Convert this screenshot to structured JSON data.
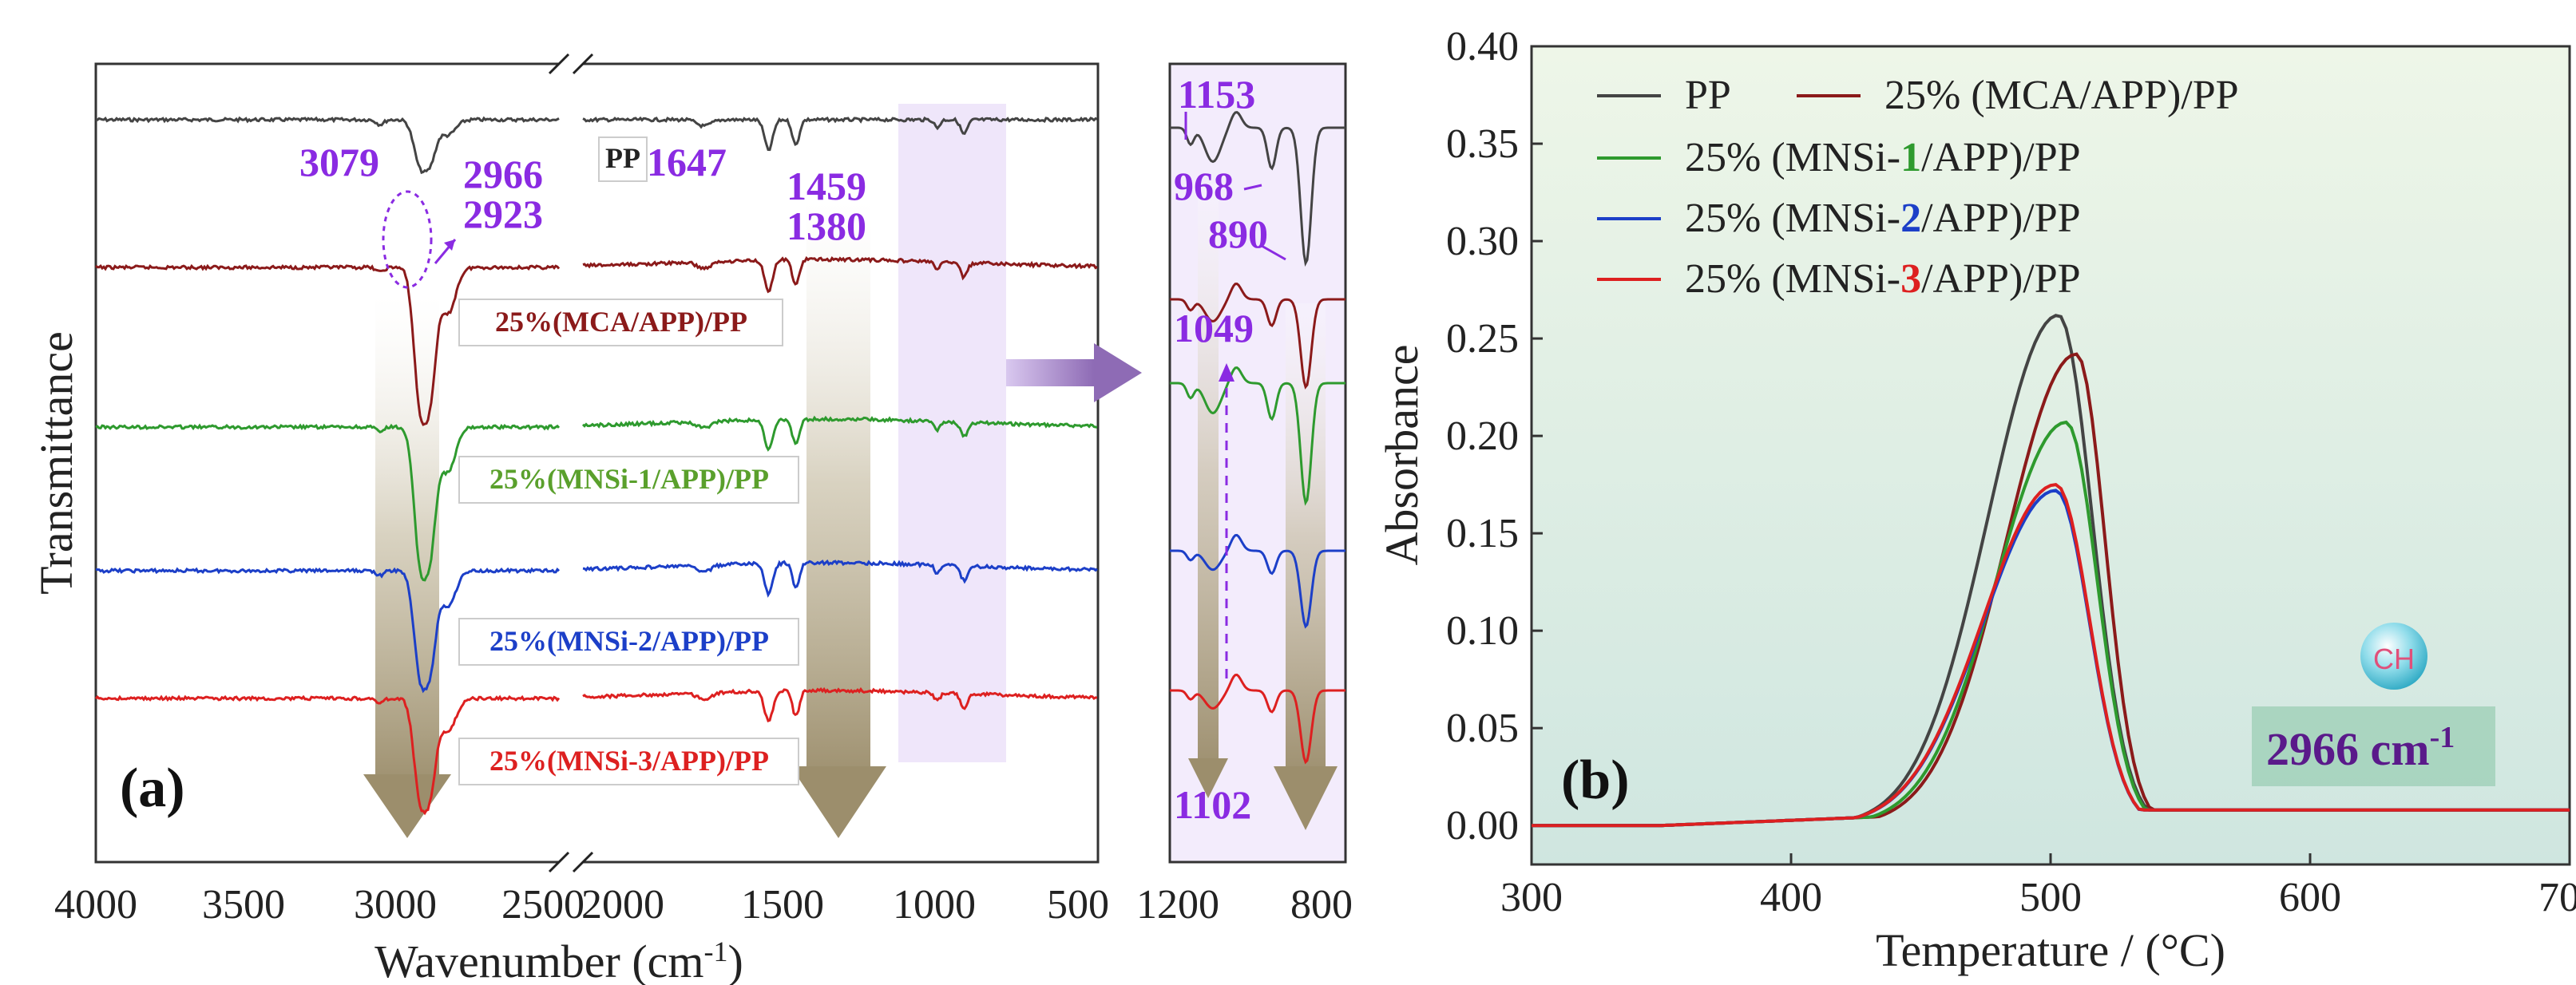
{
  "colors": {
    "PP": "#444444",
    "MCA": "#8b1a1a",
    "MNSi1": "#2e9a2e",
    "MNSi2": "#1c3fc8",
    "MNSi3": "#dd2020",
    "annotation": "#8a2be2",
    "panel_b_bg": "#d7ecdc"
  },
  "panel_a": {
    "tag": "(a)",
    "xlabel": "Wavenumber (cm",
    "xlabel_sup": "-1",
    "xlabel_close": ")",
    "ylabel": "Transmittance",
    "xticks_left": [
      "4000",
      "3500",
      "3000",
      "2500"
    ],
    "xticks_right": [
      "2000",
      "1500",
      "1000",
      "500"
    ],
    "xticks_zoom": [
      "1200",
      "800"
    ],
    "peaks": {
      "p3079": "3079",
      "p2966": "2966",
      "p2923": "2923",
      "p1647": "1647",
      "p1459": "1459",
      "p1380": "1380",
      "p1153": "1153",
      "p968": "968",
      "p890": "890",
      "p1049": "1049",
      "p1102": "1102"
    },
    "spectra_labels": {
      "PP": "PP",
      "MCA": "25%(MCA/APP)/PP",
      "MNSi1": "25%(MNSi-1/APP)/PP",
      "MNSi2": "25%(MNSi-2/APP)/PP",
      "MNSi3": "25%(MNSi-3/APP)/PP"
    }
  },
  "panel_b": {
    "tag": "(b)",
    "badge_text": "CH",
    "badge_label": "2966 cm",
    "badge_sup": "-1",
    "legend": {
      "pp": "PP",
      "mca": "25% (MCA/APP)/PP",
      "m1_pre": "25% (MNSi-",
      "m1_num": "1",
      "m1_post": "/APP)/PP",
      "m2_pre": "25% (MNSi-",
      "m2_num": "2",
      "m2_post": "/APP)/PP",
      "m3_pre": "25% (MNSi-",
      "m3_num": "3",
      "m3_post": "/APP)/PP"
    }
  },
  "chart_data": [
    {
      "type": "line",
      "panel": "a",
      "xlabel": "Wavenumber (cm-1)",
      "ylabel": "Transmittance",
      "xlim": [
        4000,
        500
      ],
      "axis_break": [
        2500,
        2000
      ],
      "x_ticks": [
        4000,
        3500,
        3000,
        2500,
        2000,
        1500,
        1000,
        500
      ],
      "series": [
        {
          "name": "PP",
          "peaks_cm-1": [
            3079,
            2966,
            2923,
            1647,
            1459,
            1380
          ]
        },
        {
          "name": "25%(MCA/APP)/PP"
        },
        {
          "name": "25%(MNSi-1/APP)/PP"
        },
        {
          "name": "25%(MNSi-2/APP)/PP"
        },
        {
          "name": "25%(MNSi-3/APP)/PP"
        }
      ]
    },
    {
      "type": "line",
      "panel": "a-zoom",
      "xlim": [
        1200,
        800
      ],
      "x_ticks": [
        1200,
        800
      ],
      "annotations": [
        1153,
        968,
        890,
        1049,
        1102
      ]
    },
    {
      "type": "line",
      "panel": "b",
      "xlabel": "Temperature / (°C)",
      "ylabel": "Absorbance",
      "xlim": [
        300,
        700
      ],
      "ylim": [
        -0.02,
        0.4
      ],
      "x_ticks": [
        300,
        400,
        500,
        600,
        700
      ],
      "y_ticks": [
        0.0,
        0.05,
        0.1,
        0.15,
        0.2,
        0.25,
        0.3,
        0.35,
        0.4
      ],
      "series": [
        {
          "name": "PP",
          "peak_x": 503,
          "peak_y": 0.262,
          "width": 27,
          "right_width": 13
        },
        {
          "name": "25% (MCA/APP)/PP",
          "peak_x": 510,
          "peak_y": 0.242,
          "width": 27,
          "right_width": 11
        },
        {
          "name": "25% (MNSi-1/APP)/PP",
          "peak_x": 506,
          "peak_y": 0.207,
          "width": 27,
          "right_width": 12
        },
        {
          "name": "25% (MNSi-2/APP)/PP",
          "peak_x": 502,
          "peak_y": 0.172,
          "width": 28,
          "right_width": 13
        },
        {
          "name": "25% (MNSi-3/APP)/PP",
          "peak_x": 502,
          "peak_y": 0.175,
          "width": 28,
          "right_width": 13
        }
      ],
      "tail_level": 0.008
    }
  ]
}
